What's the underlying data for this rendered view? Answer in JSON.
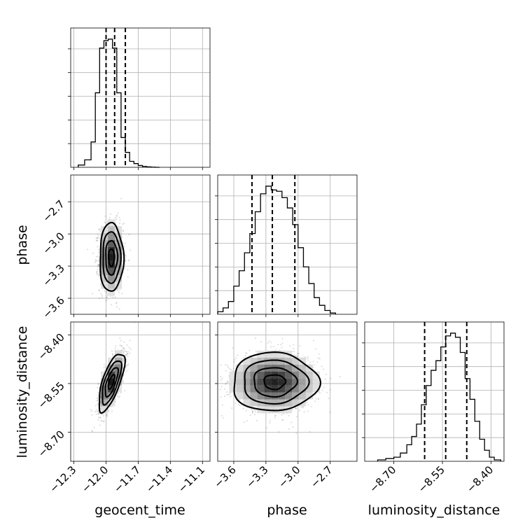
{
  "chart_data": {
    "type": "corner",
    "parameters": [
      "geocent_time",
      "phase",
      "luminosity_distance"
    ],
    "axis_labels": {
      "geocent_time": "geocent_time",
      "phase": "phase",
      "luminosity_distance": "luminosity_distance"
    },
    "ranges": {
      "geocent_time": [
        -12.33,
        -11.03
      ],
      "phase": [
        -3.75,
        -2.45
      ],
      "luminosity_distance": [
        -8.79,
        -8.36
      ]
    },
    "ticks": {
      "geocent_time": [
        -12.3,
        -12.0,
        -11.7,
        -11.4,
        -11.1
      ],
      "phase": [
        -3.6,
        -3.3,
        -3.0,
        -2.7
      ],
      "luminosity_distance": [
        -8.7,
        -8.55,
        -8.4
      ]
    },
    "tick_labels": {
      "geocent_time": [
        "−12.3",
        "−12.0",
        "−11.7",
        "−11.4",
        "−11.1"
      ],
      "phase": [
        "−3.6",
        "−3.3",
        "−3.0",
        "−2.7"
      ],
      "luminosity_distance": [
        "−8.70",
        "−8.55",
        "−8.40"
      ]
    },
    "quantiles": {
      "geocent_time": [
        -12.0,
        -11.92,
        -11.82
      ],
      "phase": [
        -3.43,
        -3.24,
        -3.03
      ],
      "luminosity_distance": [
        -8.605,
        -8.54,
        -8.475
      ]
    },
    "marginals": {
      "geocent_time": {
        "bin_edges": [
          -12.26,
          -12.2,
          -12.14,
          -12.1,
          -12.06,
          -12.02,
          -11.98,
          -11.94,
          -11.9,
          -11.86,
          -11.82,
          -11.78,
          -11.74,
          -11.7,
          -11.66,
          -11.62,
          -11.58,
          -11.54,
          -11.5
        ],
        "counts": [
          0.015,
          0.05,
          0.17,
          0.5,
          0.8,
          0.85,
          0.86,
          0.8,
          0.5,
          0.2,
          0.1,
          0.04,
          0.025,
          0.012,
          0.006,
          0.003,
          0.001,
          0.0
        ]
      },
      "phase": {
        "bin_edges": [
          -3.75,
          -3.7,
          -3.65,
          -3.6,
          -3.55,
          -3.5,
          -3.45,
          -3.4,
          -3.35,
          -3.3,
          -3.25,
          -3.2,
          -3.15,
          -3.1,
          -3.05,
          -3.0,
          -2.95,
          -2.9,
          -2.85,
          -2.8,
          -2.75,
          -2.7,
          -2.65
        ],
        "counts": [
          0.02,
          0.05,
          0.1,
          0.22,
          0.34,
          0.48,
          0.63,
          0.8,
          0.94,
          1.0,
          0.97,
          0.96,
          0.91,
          0.83,
          0.7,
          0.52,
          0.37,
          0.24,
          0.13,
          0.07,
          0.03,
          0.01
        ]
      },
      "luminosity_distance": {
        "bin_edges": [
          -8.75,
          -8.725,
          -8.7,
          -8.68,
          -8.66,
          -8.645,
          -8.63,
          -8.615,
          -8.6,
          -8.585,
          -8.57,
          -8.555,
          -8.54,
          -8.525,
          -8.51,
          -8.495,
          -8.48,
          -8.465,
          -8.45,
          -8.435,
          -8.42,
          -8.405,
          -8.39,
          -8.37
        ],
        "counts": [
          0.01,
          0.02,
          0.03,
          0.06,
          0.12,
          0.18,
          0.27,
          0.41,
          0.55,
          0.66,
          0.73,
          0.83,
          0.91,
          0.93,
          0.9,
          0.79,
          0.6,
          0.45,
          0.29,
          0.16,
          0.08,
          0.03,
          0.01
        ]
      }
    },
    "joint": {
      "phase|geocent_time": {
        "mean": [
          -11.95,
          -3.22
        ],
        "sd": [
          0.055,
          0.16
        ],
        "corr": 0.0
      },
      "luminosity_distance|geocent_time": {
        "mean": [
          -11.95,
          -8.545
        ],
        "sd": [
          0.06,
          0.045
        ],
        "corr": 0.7
      },
      "luminosity_distance|phase": {
        "mean": [
          -3.22,
          -8.545
        ],
        "sd": [
          0.2,
          0.045
        ],
        "corr": 0.0
      }
    },
    "contour_levels_sigma": [
      0.5,
      1.0,
      1.5,
      2.0
    ],
    "grid": true
  }
}
